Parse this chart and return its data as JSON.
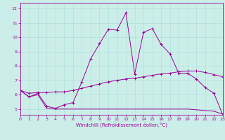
{
  "bg_color": "#cceee8",
  "line_color": "#990099",
  "grid_color": "#aadddd",
  "xlim_min": 0,
  "xlim_max": 23,
  "ylim_min": 4.6,
  "ylim_max": 12.4,
  "xlabel": "Windchill (Refroidissement éolien,°C)",
  "xticks": [
    0,
    1,
    2,
    3,
    4,
    5,
    6,
    7,
    8,
    9,
    10,
    11,
    12,
    13,
    14,
    15,
    16,
    17,
    18,
    19,
    20,
    21,
    22,
    23
  ],
  "yticks": [
    5,
    6,
    7,
    8,
    9,
    10,
    11,
    12
  ],
  "line1_x": [
    0,
    1,
    2,
    3,
    4,
    5,
    6,
    7,
    8,
    9,
    10,
    11,
    12,
    13,
    14,
    15,
    16,
    17,
    18,
    19,
    20,
    21,
    22,
    23
  ],
  "line1_y": [
    6.3,
    5.85,
    6.1,
    5.2,
    5.05,
    5.3,
    5.45,
    6.9,
    8.5,
    9.55,
    10.55,
    10.5,
    11.7,
    7.45,
    10.35,
    10.6,
    9.5,
    8.85,
    7.5,
    7.5,
    7.1,
    6.5,
    6.1,
    4.6
  ],
  "line2_x": [
    0,
    1,
    2,
    3,
    4,
    5,
    6,
    7,
    8,
    9,
    10,
    11,
    12,
    13,
    14,
    15,
    16,
    17,
    18,
    19,
    20,
    21,
    22,
    23
  ],
  "line2_y": [
    6.3,
    6.1,
    6.15,
    6.15,
    6.2,
    6.2,
    6.3,
    6.45,
    6.6,
    6.75,
    6.9,
    7.0,
    7.1,
    7.15,
    7.25,
    7.35,
    7.45,
    7.5,
    7.6,
    7.65,
    7.65,
    7.55,
    7.4,
    7.25
  ],
  "line3_x": [
    0,
    1,
    2,
    3,
    4,
    5,
    6,
    7,
    8,
    9,
    10,
    11,
    12,
    13,
    14,
    15,
    16,
    17,
    18,
    19,
    20,
    21,
    22,
    23
  ],
  "line3_y": [
    6.3,
    5.85,
    6.0,
    5.05,
    5.0,
    5.0,
    5.0,
    5.0,
    5.0,
    5.0,
    5.0,
    5.0,
    5.0,
    5.0,
    5.0,
    5.0,
    5.0,
    5.0,
    5.0,
    5.0,
    4.95,
    4.9,
    4.85,
    4.65
  ]
}
